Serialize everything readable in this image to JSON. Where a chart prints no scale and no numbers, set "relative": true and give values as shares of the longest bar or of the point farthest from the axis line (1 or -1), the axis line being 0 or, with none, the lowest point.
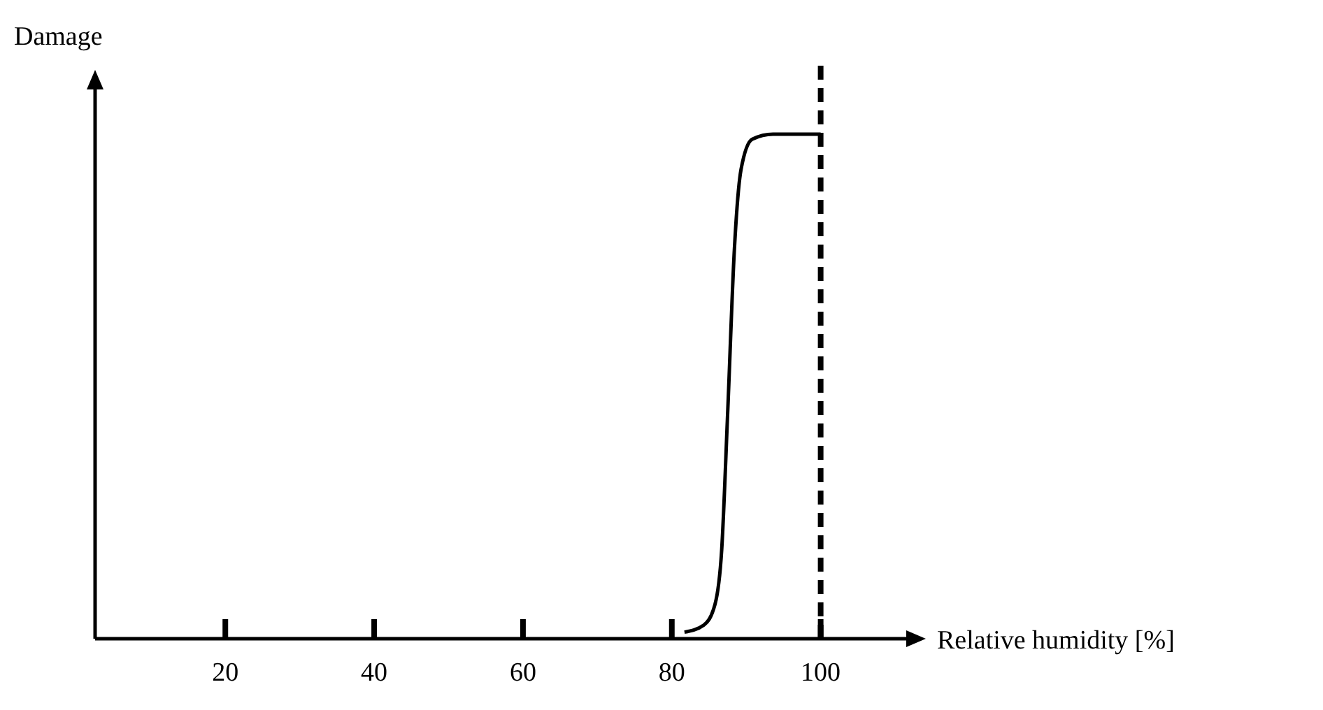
{
  "chart_data": {
    "type": "line",
    "ylabel": "Damage",
    "xlabel": "Relative humidity [%]",
    "relative": true,
    "xlim": [
      2.5,
      111.5
    ],
    "xticks": [
      20,
      40,
      60,
      80,
      100
    ],
    "x": [
      81.7,
      84.3,
      85.8,
      86.7,
      87.5,
      88.4,
      89.3,
      90.8,
      93.6,
      100
    ],
    "series": [
      {
        "color": "#000000",
        "values": [
          0.013,
          0.027,
          0.068,
          0.176,
          0.446,
          0.77,
          0.93,
          0.99,
          1,
          1
        ]
      }
    ],
    "ref_lines": [
      {
        "axis": "x",
        "value": 100,
        "color": "#000000",
        "line_style": "dashed"
      }
    ],
    "grid": false,
    "line_style": "solid"
  }
}
